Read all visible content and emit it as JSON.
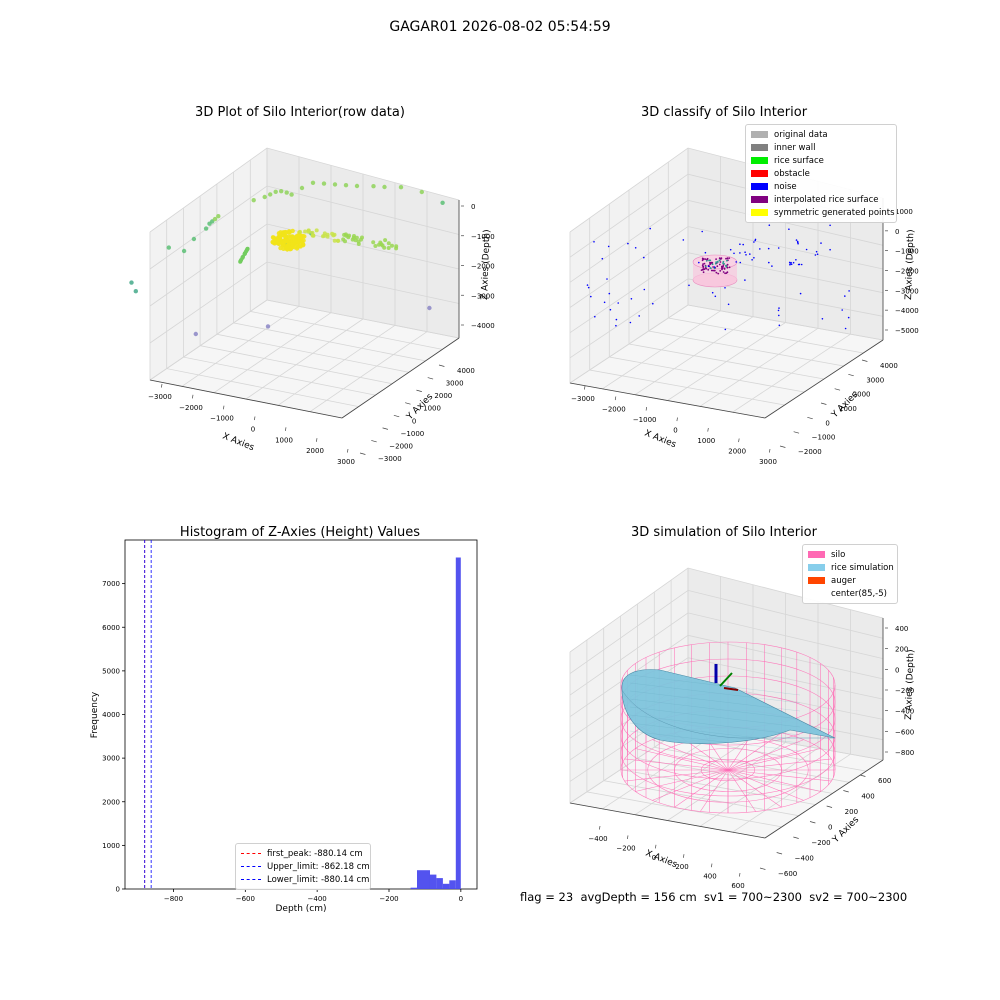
{
  "figure_title": "GAGAR01 2026-08-02 05:54:59",
  "footer": "flag = 23  avgDepth = 156 cm  sv1 = 700~2300  sv2 = 700~2300",
  "chart_data": [
    {
      "type": "scatter",
      "projection": "3d",
      "title": "3D Plot of Silo Interior(row data)",
      "xlabel": "X Axies",
      "ylabel": "Y Axies",
      "zlabel": "Z Axies (Depth)",
      "x_ticks": [
        "−3000",
        "−2000",
        "−1000",
        "0",
        "1000",
        "2000",
        "3000"
      ],
      "y_ticks": [
        "−3000",
        "−2000",
        "−1000",
        "0",
        "1000",
        "2000",
        "3000",
        "4000"
      ],
      "z_ticks": [
        "0",
        "−1000",
        "−2000",
        "−3000",
        "−4000"
      ],
      "colormap": "viridis",
      "points": [
        {
          "x": -3100,
          "y": -2600,
          "z": -3000
        },
        {
          "x": -3000,
          "y": -2600,
          "z": -3200
        },
        {
          "x": -2400,
          "y": -2000,
          "z": -2200
        },
        {
          "x": -2100,
          "y": -1800,
          "z": -2300
        },
        {
          "x": -1900,
          "y": -1700,
          "z": -2000
        },
        {
          "x": -1700,
          "y": -1400,
          "z": -1800
        },
        {
          "x": -1650,
          "y": -1300,
          "z": -1700
        },
        {
          "x": -1600,
          "y": -1250,
          "z": -1650
        },
        {
          "x": -1550,
          "y": -1200,
          "z": -1600
        },
        {
          "x": -1500,
          "y": -1100,
          "z": -1550
        },
        {
          "x": -900,
          "y": -300,
          "z": -1300
        },
        {
          "x": -700,
          "y": -100,
          "z": -1250
        },
        {
          "x": -600,
          "y": 0,
          "z": -1200
        },
        {
          "x": -500,
          "y": 100,
          "z": -1150
        },
        {
          "x": -400,
          "y": 200,
          "z": -1150
        },
        {
          "x": -300,
          "y": 300,
          "z": -1200
        },
        {
          "x": -200,
          "y": 350,
          "z": -1250
        },
        {
          "x": 0,
          "y": 500,
          "z": -1100
        },
        {
          "x": 200,
          "y": 700,
          "z": -1000
        },
        {
          "x": 400,
          "y": 900,
          "z": -1050
        },
        {
          "x": 600,
          "y": 1100,
          "z": -1100
        },
        {
          "x": 800,
          "y": 1300,
          "z": -1150
        },
        {
          "x": 1000,
          "y": 1500,
          "z": -1200
        },
        {
          "x": 1300,
          "y": 1800,
          "z": -1250
        },
        {
          "x": 1500,
          "y": 2000,
          "z": -1300
        },
        {
          "x": 1800,
          "y": 2300,
          "z": -1350
        },
        {
          "x": 2200,
          "y": 2600,
          "z": -1500
        },
        {
          "x": 2600,
          "y": 2900,
          "z": -1800
        },
        {
          "x": -200,
          "y": -200,
          "z": -2300
        },
        {
          "x": 300,
          "y": 200,
          "z": -2100
        },
        {
          "x": 2600,
          "y": 1800,
          "z": -4100
        },
        {
          "x": -1800,
          "y": -1900,
          "z": -4300
        },
        {
          "x": -400,
          "y": -900,
          "z": -4200
        }
      ]
    },
    {
      "type": "scatter",
      "projection": "3d",
      "title": "3D classify of Silo Interior",
      "zlabel": "Z Axies (Depth)",
      "xlabel": "X Axies",
      "ylabel": "Y Axies",
      "x_ticks": [
        "−3000",
        "−2000",
        "−1000",
        "0",
        "1000",
        "2000",
        "3000"
      ],
      "y_ticks": [
        "−2000",
        "−1000",
        "0",
        "1000",
        "2000",
        "3000",
        "4000"
      ],
      "z_ticks": [
        "1000",
        "0",
        "−1000",
        "−2000",
        "−3000",
        "−4000",
        "−5000"
      ],
      "legend_position": "top-right",
      "legend": [
        {
          "label": "original data",
          "color": "#b0b0b0"
        },
        {
          "label": "inner wall",
          "color": "#808080"
        },
        {
          "label": "rice surface",
          "color": "#00ee00"
        },
        {
          "label": "obstacle",
          "color": "#ff0000"
        },
        {
          "label": "noise",
          "color": "#0000ff"
        },
        {
          "label": "interpolated rice surface",
          "color": "#800080"
        },
        {
          "label": "symmetric generated points",
          "color": "#ffff00"
        }
      ]
    },
    {
      "type": "bar",
      "title": "Histogram of Z-Axies (Height) Values",
      "xlabel": "Depth (cm)",
      "ylabel": "Frequency",
      "x_ticks": [
        "−800",
        "−600",
        "−400",
        "−200",
        "0"
      ],
      "y_ticks": [
        "0",
        "1000",
        "2000",
        "3000",
        "4000",
        "5000",
        "6000",
        "7000"
      ],
      "xlim": [
        -935,
        45
      ],
      "ylim": [
        0,
        8000
      ],
      "bar_color": "#4a4aee",
      "bins": [
        {
          "x0": -140,
          "x1": -122,
          "value": 30
        },
        {
          "x0": -122,
          "x1": -104,
          "value": 430
        },
        {
          "x0": -104,
          "x1": -86,
          "value": 430
        },
        {
          "x0": -86,
          "x1": -68,
          "value": 330
        },
        {
          "x0": -68,
          "x1": -50,
          "value": 250
        },
        {
          "x0": -50,
          "x1": -32,
          "value": 120
        },
        {
          "x0": -32,
          "x1": -14,
          "value": 200
        },
        {
          "x0": -14,
          "x1": 0,
          "value": 7600
        }
      ],
      "vlines": [
        {
          "x": -880.14,
          "color": "#ff0000",
          "label": "first_peak: -880.14 cm"
        },
        {
          "x": -862.18,
          "color": "#0000ff",
          "label": "Upper_limit: -862.18 cm"
        },
        {
          "x": -880.14,
          "color": "#0000ff",
          "label": "Lower_limit: -880.14 cm"
        }
      ],
      "legend_position": "bottom-center"
    },
    {
      "type": "surface",
      "projection": "3d",
      "title": "3D simulation of Silo Interior",
      "xlabel": "X Axies",
      "ylabel": "Y Axies",
      "zlabel": "Z Axies (Depth)",
      "x_ticks": [
        "−400",
        "−200",
        "0",
        "200",
        "400",
        "600"
      ],
      "y_ticks": [
        "−600",
        "−400",
        "−200",
        "0",
        "200",
        "400",
        "600"
      ],
      "z_ticks": [
        "400",
        "200",
        "0",
        "−200",
        "−400",
        "−600",
        "−800"
      ],
      "legend_position": "top-right",
      "legend": [
        {
          "label": "silo",
          "color": "#ff69b4"
        },
        {
          "label": "rice simulation",
          "color": "#87ceeb"
        },
        {
          "label": "auger",
          "color": "#ff4500"
        },
        {
          "label": "center(85,-5)",
          "color": "none"
        }
      ]
    }
  ]
}
